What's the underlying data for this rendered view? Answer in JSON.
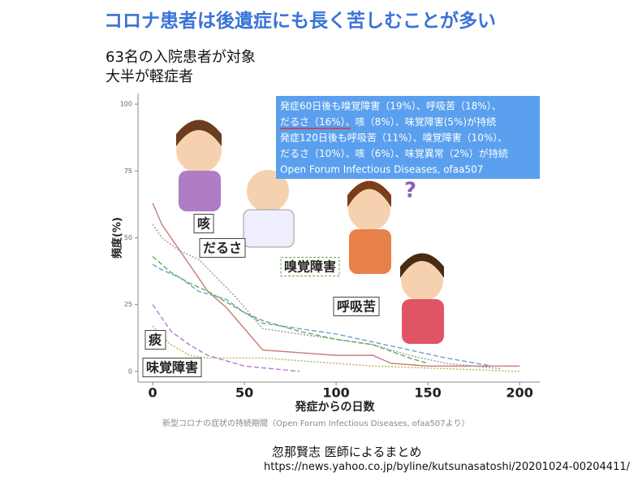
{
  "title": "コロナ患者は後遺症にも長く苦しむことが多い",
  "subtitle": [
    "63名の入院患者が対象",
    "大半が軽症者"
  ],
  "chart_data": {
    "type": "line",
    "xlabel": "発症からの日数",
    "ylabel": "頻度(%)",
    "xlim": [
      -8,
      211
    ],
    "ylim": [
      -4,
      104
    ],
    "xticks": [
      0,
      50,
      100,
      150,
      200
    ],
    "yticks": [
      0,
      25,
      50,
      75,
      100
    ],
    "series": [
      {
        "name": "咳",
        "color": "#c97a76",
        "linestyle": "solid",
        "x": [
          0,
          5,
          10,
          15,
          20,
          25,
          30,
          40,
          50,
          60,
          80,
          100,
          120,
          130,
          150,
          200
        ],
        "values": [
          63,
          55,
          50,
          45,
          40,
          35,
          30,
          24,
          16,
          8,
          7,
          6,
          6,
          3,
          2,
          2
        ]
      },
      {
        "name": "だるさ",
        "color": "#9a9a9a",
        "linestyle": "dotted",
        "x": [
          0,
          5,
          15,
          25,
          35,
          45,
          60,
          80,
          100,
          120,
          140,
          160,
          190
        ],
        "values": [
          55,
          50,
          45,
          42,
          35,
          28,
          16,
          14,
          12,
          10,
          6,
          3,
          1
        ]
      },
      {
        "name": "嗅覚障害",
        "color": "#66a94e",
        "linestyle": "dashed",
        "x": [
          0,
          5,
          10,
          20,
          30,
          40,
          50,
          60,
          80,
          100,
          120,
          140,
          150
        ],
        "values": [
          43,
          40,
          37,
          33,
          30,
          26,
          22,
          19,
          15,
          12,
          10,
          5,
          3
        ]
      },
      {
        "name": "呼吸苦",
        "color": "#6aa0d8",
        "linestyle": "dashed",
        "x": [
          0,
          5,
          15,
          25,
          40,
          50,
          60,
          80,
          100,
          120,
          140,
          160,
          185
        ],
        "values": [
          40,
          38,
          35,
          30,
          27,
          22,
          18,
          16,
          14,
          11,
          8,
          5,
          2
        ]
      },
      {
        "name": "痰",
        "color": "#b57ad0",
        "linestyle": "dashed",
        "x": [
          0,
          5,
          10,
          20,
          30,
          40,
          50,
          80
        ],
        "values": [
          25,
          20,
          15,
          10,
          6,
          4,
          2,
          0
        ]
      },
      {
        "name": "味覚障害",
        "color": "#b9b44f",
        "linestyle": "dotted",
        "x": [
          0,
          5,
          10,
          15,
          20,
          30,
          45,
          60,
          80,
          120,
          200
        ],
        "values": [
          17,
          13,
          10,
          8,
          6,
          5,
          5,
          5,
          4,
          2,
          0
        ]
      }
    ],
    "note_lines": [
      "発症60日後も嗅覚障害（19%）、呼吸苦（18%）、",
      "だるさ（16%）、咳（8%）、味覚障害(5%)が持続",
      "発症120日後も呼吸苦（11%）、嗅覚障害（10%）、",
      "だるさ（10%）、咳（6%）、味覚異常（2%）が持続",
      "Open Forum Infectious Diseases, ofaa507"
    ],
    "caption": "新型コロナの症状の持続期間（Open Forum Infectious Diseases, ofaa507より）"
  },
  "author": "忽那賢志 医師によるまとめ",
  "url": "https://news.yahoo.co.jp/byline/kutsunasatoshi/20201024-00204411/"
}
